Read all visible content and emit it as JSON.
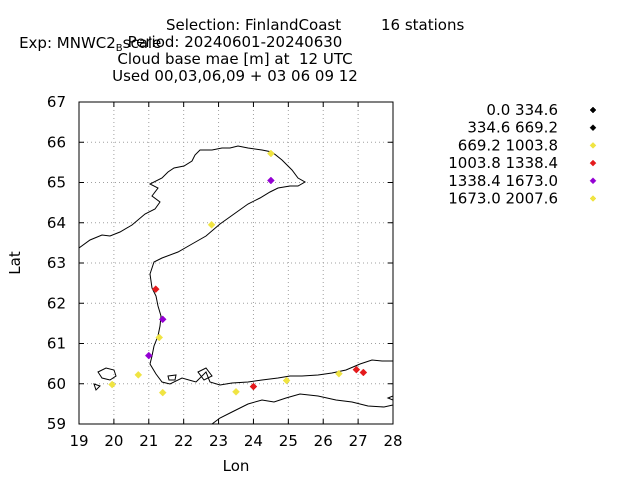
{
  "header": {
    "exp_prefix": "Exp: MNWC2",
    "exp_sub": "B",
    "exp_suffix": "scale",
    "selection": "Selection: FinlandCoast",
    "stations": "16 stations",
    "line2": "Period: 20240601-20240630",
    "line3": "Cloud base mae [m] at  12 UTC",
    "line4": "Used 00,03,06,09 + 03 06 09 12"
  },
  "chart_data": {
    "type": "scatter",
    "title": "Cloud base mae [m] at  12 UTC",
    "xlabel": "Lon",
    "ylabel": "Lat",
    "xlim": [
      19,
      28
    ],
    "ylim": [
      59,
      67
    ],
    "xticks": [
      "19",
      "20",
      "21",
      "22",
      "23",
      "24",
      "25",
      "26",
      "27",
      "28"
    ],
    "yticks": [
      "59",
      "60",
      "61",
      "62",
      "63",
      "64",
      "65",
      "66",
      "67"
    ],
    "grid": true,
    "legend_position": "right",
    "series": [
      {
        "name": "0.0 334.6",
        "color": "#000000",
        "points": []
      },
      {
        "name": "334.6 669.2",
        "color": "#000000",
        "points": []
      },
      {
        "name": "669.2 1003.8",
        "color": "#f0e442",
        "points": [
          [
            19.95,
            59.98
          ],
          [
            20.7,
            60.22
          ],
          [
            21.4,
            59.78
          ],
          [
            21.3,
            61.15
          ],
          [
            22.8,
            63.95
          ],
          [
            23.5,
            59.8
          ],
          [
            24.5,
            65.72
          ],
          [
            24.95,
            60.08
          ],
          [
            26.45,
            60.25
          ]
        ]
      },
      {
        "name": "1003.8 1338.4",
        "color": "#e41a1c",
        "points": [
          [
            21.2,
            62.35
          ],
          [
            24.0,
            59.93
          ],
          [
            26.95,
            60.35
          ],
          [
            27.15,
            60.28
          ]
        ]
      },
      {
        "name": "1338.4 1673.0",
        "color": "#9400d3",
        "points": [
          [
            21.0,
            60.7
          ],
          [
            21.4,
            61.6
          ],
          [
            24.5,
            65.05
          ]
        ]
      },
      {
        "name": "1673.0 2007.6",
        "color": "#f0e442",
        "points": []
      }
    ]
  }
}
